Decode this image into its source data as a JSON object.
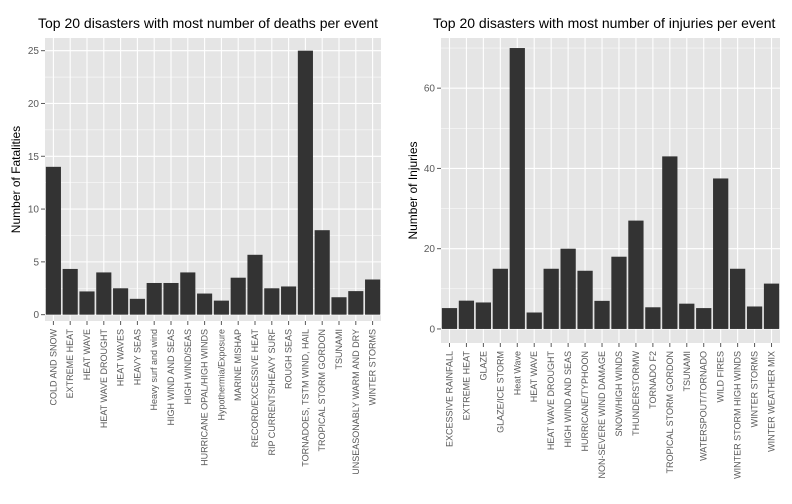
{
  "colors": {
    "panel_background": "#e5e5e5",
    "gridline": "#ffffff",
    "bar_fill": "#333333",
    "tick_text": "#5a5a5a"
  },
  "chart_data": [
    {
      "type": "bar",
      "title": "Top 20 disasters with most number of deaths per event",
      "xlabel": "",
      "ylabel": "Number of Fatalities",
      "ylim": [
        -0.6,
        26.2
      ],
      "yticks": [
        0,
        5,
        10,
        15,
        20,
        25
      ],
      "grid": true,
      "categories": [
        "COLD AND SNOW",
        "EXTREME HEAT",
        "HEAT WAVE",
        "HEAT WAVE DROUGHT",
        "HEAT WAVES",
        "HEAVY SEAS",
        "Heavy surf and wind",
        "HIGH WIND AND SEAS",
        "HIGH WIND/SEAS",
        "HURRICANE OPAL/HIGH WINDS",
        "Hypothermia/Exposure",
        "MARINE MISHAP",
        "RECORD/EXCESSIVE HEAT",
        "RIP CURRENTS/HEAVY SURF",
        "ROUGH SEAS",
        "TORNADOES, TSTM WIND, HAIL",
        "TROPICAL STORM GORDON",
        "TSUNAMI",
        "UNSEASONABLY WARM AND DRY",
        "WINTER STORMS"
      ],
      "values": [
        14,
        4.33,
        2.2,
        4,
        2.5,
        1.5,
        3,
        3,
        4,
        2,
        1.33,
        3.5,
        5.67,
        2.5,
        2.67,
        25,
        8,
        1.65,
        2.23,
        3.33
      ]
    },
    {
      "type": "bar",
      "title": "Top 20 disasters with most number of injuries per event",
      "xlabel": "",
      "ylabel": "Number of Injuries",
      "ylim": [
        -3.5,
        72.5
      ],
      "yticks": [
        0,
        20,
        40,
        60
      ],
      "grid": true,
      "categories": [
        "EXCESSIVE RAINFALL",
        "EXTREME HEAT",
        "GLAZE",
        "GLAZE/ICE STORM",
        "Heat Wave",
        "HEAT WAVE",
        "HEAT WAVE DROUGHT",
        "HIGH WIND AND SEAS",
        "HURRICANE/TYPHOON",
        "NON-SEVERE WIND DAMAGE",
        "SNOW/HIGH WINDS",
        "THUNDERSTORMW",
        "TORNADO F2",
        "TROPICAL STORM GORDON",
        "TSUNAMI",
        "WATERSPOUT/TORNADO",
        "WILD FIRES",
        "WINTER STORM HIGH WINDS",
        "WINTER STORMS",
        "WINTER WEATHER MIX"
      ],
      "values": [
        5.2,
        7.05,
        6.6,
        15,
        70,
        4.1,
        15,
        20,
        14.5,
        7,
        18,
        27,
        5.4,
        43,
        6.3,
        5.2,
        37.5,
        15,
        5.6,
        11.3
      ]
    }
  ]
}
